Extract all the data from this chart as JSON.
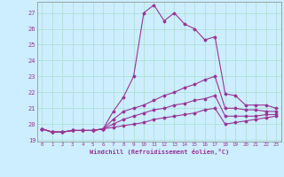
{
  "xlabel": "Windchill (Refroidissement éolien,°C)",
  "background_color": "#cceeff",
  "grid_color": "#aaddcc",
  "line_color": "#993399",
  "x_values": [
    0,
    1,
    2,
    3,
    4,
    5,
    6,
    7,
    8,
    9,
    10,
    11,
    12,
    13,
    14,
    15,
    16,
    17,
    18,
    19,
    20,
    21,
    22,
    23
  ],
  "ylim": [
    18.9,
    27.7
  ],
  "xlim": [
    -0.5,
    23.5
  ],
  "yticks": [
    19,
    20,
    21,
    22,
    23,
    24,
    25,
    26,
    27
  ],
  "line1": [
    19.7,
    19.5,
    19.5,
    19.6,
    19.6,
    19.6,
    19.7,
    20.8,
    21.7,
    23.0,
    27.0,
    27.5,
    26.5,
    27.0,
    26.3,
    26.0,
    25.3,
    25.5,
    21.9,
    21.8,
    21.2,
    21.2,
    21.2,
    21.0
  ],
  "line2": [
    19.7,
    19.5,
    19.5,
    19.6,
    19.6,
    19.6,
    19.7,
    20.3,
    20.8,
    21.0,
    21.2,
    21.5,
    21.8,
    22.0,
    22.3,
    22.5,
    22.8,
    23.0,
    21.0,
    21.0,
    20.9,
    20.9,
    20.8,
    20.8
  ],
  "line3": [
    19.7,
    19.5,
    19.5,
    19.6,
    19.6,
    19.6,
    19.7,
    20.0,
    20.3,
    20.5,
    20.7,
    20.9,
    21.0,
    21.2,
    21.3,
    21.5,
    21.6,
    21.8,
    20.5,
    20.5,
    20.5,
    20.5,
    20.6,
    20.6
  ],
  "line4": [
    19.7,
    19.5,
    19.5,
    19.6,
    19.6,
    19.6,
    19.7,
    19.8,
    19.9,
    20.0,
    20.1,
    20.3,
    20.4,
    20.5,
    20.6,
    20.7,
    20.9,
    21.0,
    20.0,
    20.1,
    20.2,
    20.3,
    20.4,
    20.5
  ]
}
